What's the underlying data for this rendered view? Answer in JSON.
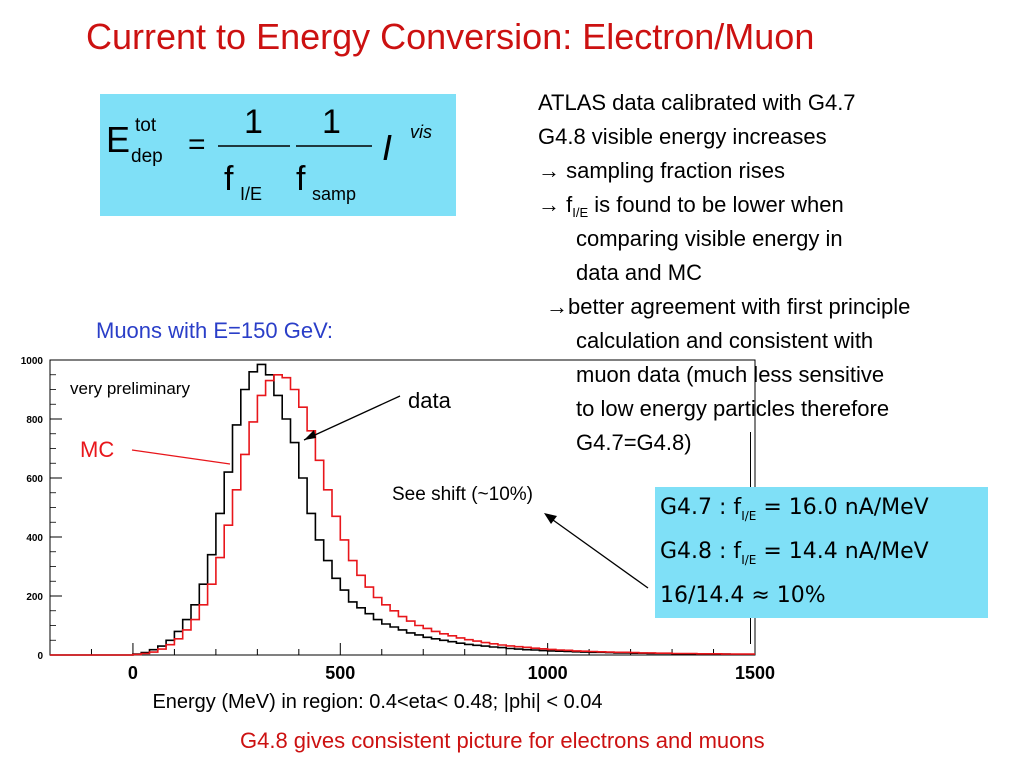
{
  "title": "Current to Energy Conversion:  Electron/Muon",
  "formula": {
    "lhs_base": "E",
    "lhs_sup": "tot",
    "lhs_sub": "dep",
    "equals": "=",
    "num1": "1",
    "num2": "1",
    "den1_base": "f",
    "den1_sub": "I/E",
    "den2_base": "f",
    "den2_sub": "samp",
    "rhs_base": "I",
    "rhs_sup": "vis"
  },
  "notes": {
    "l1": "ATLAS data calibrated with G4.7",
    "l2": "G4.8 visible energy increases",
    "l3": "→ sampling fraction rises",
    "l4_pre": "→ f",
    "l4_sub": "I/E",
    "l4_post": " is found to be lower when",
    "l5": "comparing visible energy in",
    "l6": "data and MC",
    "l7": "→better agreement with first principle",
    "l8": "calculation and consistent with",
    "l9": "muon data (much less sensitive",
    "l10": "to low energy particles therefore",
    "l11": "G4.7=G4.8)"
  },
  "muon_label": "Muons with E=150 GeV:",
  "results": {
    "r1_pre": "G4.7 : f",
    "r1_sub": "I/E",
    "r1_post": " = 16.0 nA/MeV",
    "r2_pre": "G4.8 : f",
    "r2_sub": "I/E",
    "r2_post": " = 14.4 nA/MeV",
    "r3": "16/14.4 ≈ 10%"
  },
  "footer": "G4.8 gives consistent picture for electrons and muons",
  "colors": {
    "title": "#cc1111",
    "accent_box": "#7fe0f7",
    "muon_label": "#2a3ec8",
    "mc_line": "#e8161b",
    "data_line": "#000000"
  },
  "chart_data": {
    "type": "line",
    "xlabel": "Energy (MeV) in region: 0.4<eta< 0.48; |phi| < 0.04",
    "ylabel": "",
    "xlim": [
      -200,
      1500
    ],
    "ylim": [
      0,
      1000
    ],
    "x_ticks": [
      0,
      500,
      1000,
      1500
    ],
    "x_tick_labels": [
      "0",
      "500",
      "1000",
      "1500"
    ],
    "y_ticks": [
      0,
      200,
      400,
      600,
      800,
      1000
    ],
    "y_tick_labels": [
      "0",
      "200",
      "400",
      "600",
      "800",
      "1000"
    ],
    "annotations": {
      "preliminary": "very preliminary",
      "data": "data",
      "mc": "MC",
      "shift": "See shift (~10%)"
    },
    "x": [
      -200,
      -180,
      -160,
      -140,
      -120,
      -100,
      -80,
      -60,
      -40,
      -20,
      0,
      20,
      40,
      60,
      80,
      100,
      120,
      140,
      160,
      180,
      200,
      220,
      240,
      260,
      280,
      300,
      320,
      340,
      360,
      380,
      400,
      420,
      440,
      460,
      480,
      500,
      520,
      540,
      560,
      580,
      600,
      620,
      640,
      660,
      680,
      700,
      720,
      740,
      760,
      780,
      800,
      820,
      840,
      860,
      880,
      900,
      920,
      940,
      960,
      980,
      1000,
      1020,
      1040,
      1060,
      1080,
      1100,
      1120,
      1140,
      1160,
      1180,
      1200,
      1220,
      1240,
      1260,
      1280,
      1300,
      1320,
      1340,
      1360,
      1380,
      1400,
      1420,
      1440,
      1460,
      1480
    ],
    "series": [
      {
        "name": "data",
        "values": [
          0,
          0,
          0,
          0,
          0,
          0,
          0,
          0,
          0,
          0,
          3,
          8,
          18,
          30,
          50,
          80,
          120,
          170,
          240,
          340,
          480,
          620,
          780,
          900,
          960,
          985,
          950,
          880,
          800,
          720,
          600,
          480,
          390,
          320,
          260,
          220,
          180,
          160,
          140,
          120,
          105,
          95,
          85,
          75,
          68,
          60,
          55,
          50,
          45,
          40,
          36,
          33,
          30,
          27,
          25,
          22,
          20,
          18,
          17,
          15,
          14,
          13,
          12,
          11,
          10,
          9,
          9,
          8,
          7,
          7,
          6,
          6,
          5,
          5,
          5,
          4,
          4,
          4,
          3,
          3,
          3,
          3,
          2,
          2,
          2
        ]
      },
      {
        "name": "MC",
        "values": [
          0,
          0,
          0,
          0,
          0,
          0,
          0,
          0,
          0,
          0,
          2,
          5,
          10,
          20,
          35,
          55,
          85,
          120,
          170,
          240,
          330,
          440,
          560,
          680,
          790,
          880,
          930,
          950,
          940,
          900,
          840,
          760,
          660,
          560,
          470,
          390,
          320,
          270,
          230,
          195,
          170,
          150,
          130,
          115,
          100,
          90,
          80,
          72,
          65,
          58,
          52,
          47,
          42,
          38,
          34,
          31,
          28,
          26,
          23,
          21,
          19,
          17,
          16,
          14,
          13,
          12,
          11,
          10,
          9,
          9,
          8,
          7,
          7,
          6,
          6,
          5,
          5,
          5,
          4,
          4,
          4,
          3,
          3,
          3,
          3
        ]
      }
    ]
  }
}
